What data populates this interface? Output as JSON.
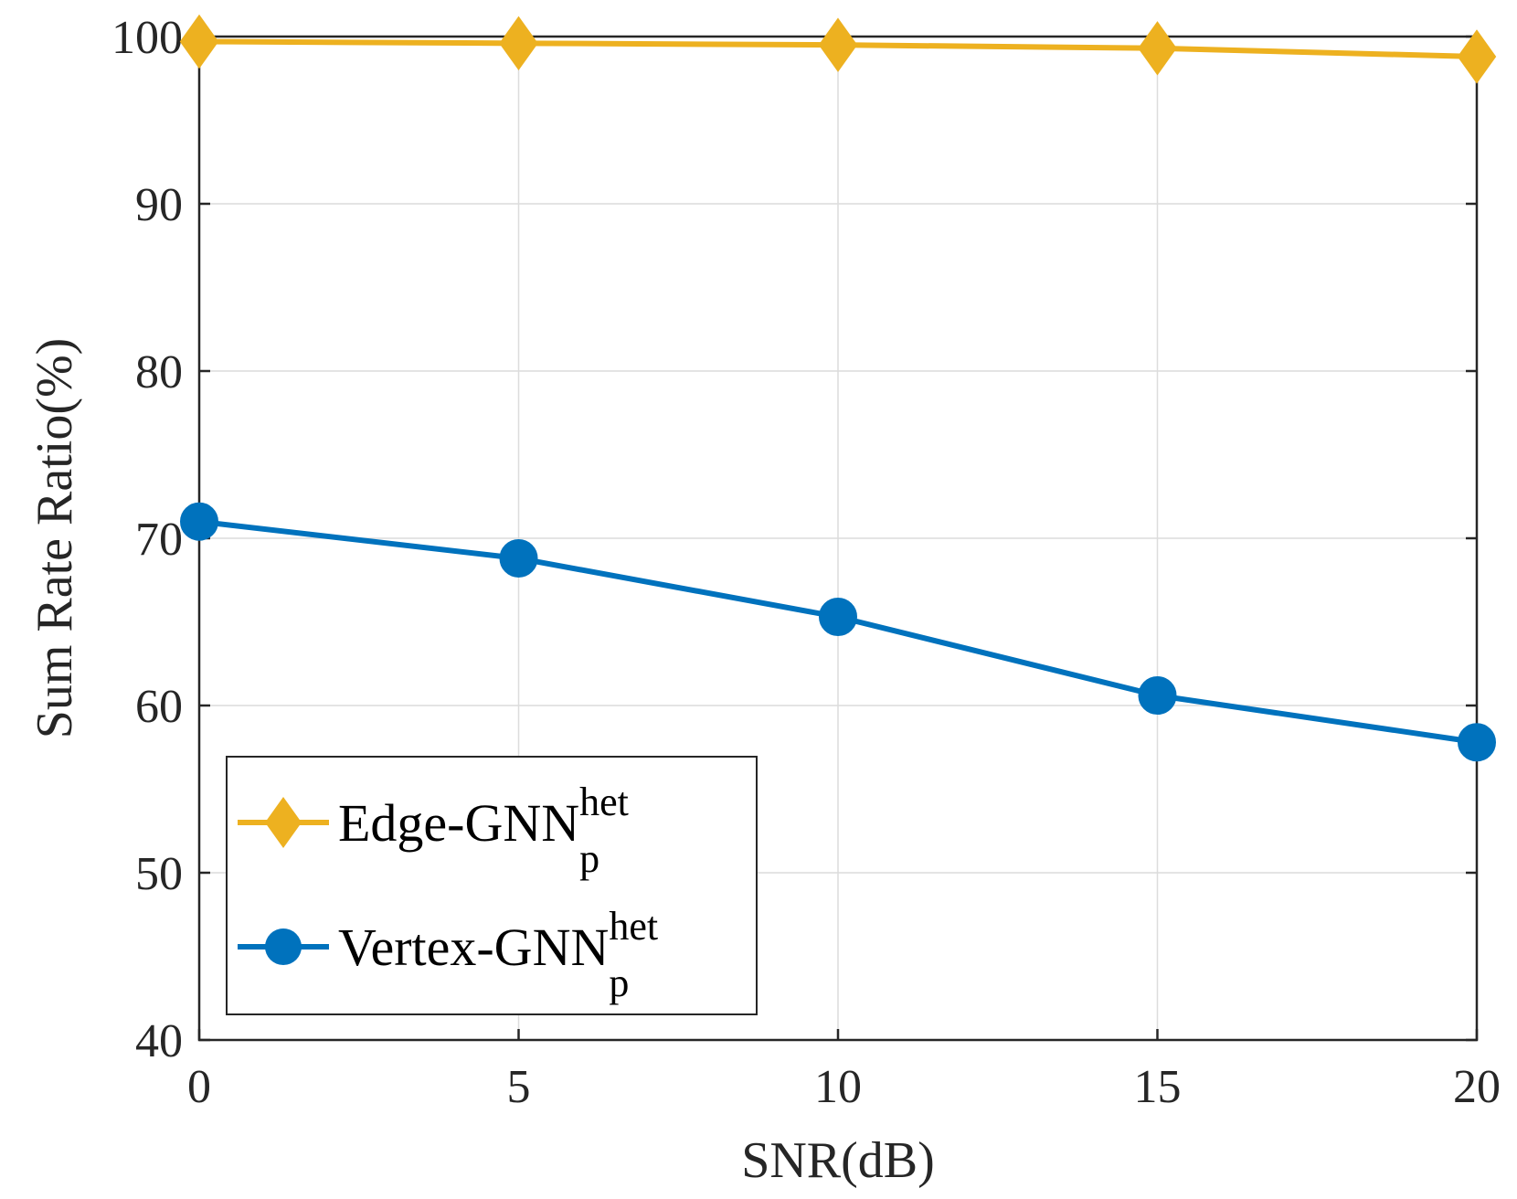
{
  "chart_data": {
    "type": "line",
    "title": "",
    "xlabel": "SNR(dB)",
    "ylabel": "Sum Rate Ratio(%)",
    "x": [
      0,
      5,
      10,
      15,
      20
    ],
    "xlim": [
      0,
      20
    ],
    "ylim": [
      40,
      100
    ],
    "xticks": [
      "0",
      "5",
      "10",
      "15",
      "20"
    ],
    "yticks": [
      "40",
      "50",
      "60",
      "70",
      "80",
      "90",
      "100"
    ],
    "grid": true,
    "legend_position": "bottom-left",
    "series": [
      {
        "name": "Edge-GNN",
        "name_superscript": "het",
        "name_subscript": "p",
        "marker": "diamond",
        "color": "#EDB120",
        "values": [
          99.7,
          99.6,
          99.5,
          99.3,
          98.8
        ]
      },
      {
        "name": "Vertex-GNN",
        "name_superscript": "het",
        "name_subscript": "p",
        "marker": "circle",
        "color": "#0072BD",
        "values": [
          71.0,
          68.8,
          65.3,
          60.6,
          57.8
        ]
      }
    ]
  }
}
